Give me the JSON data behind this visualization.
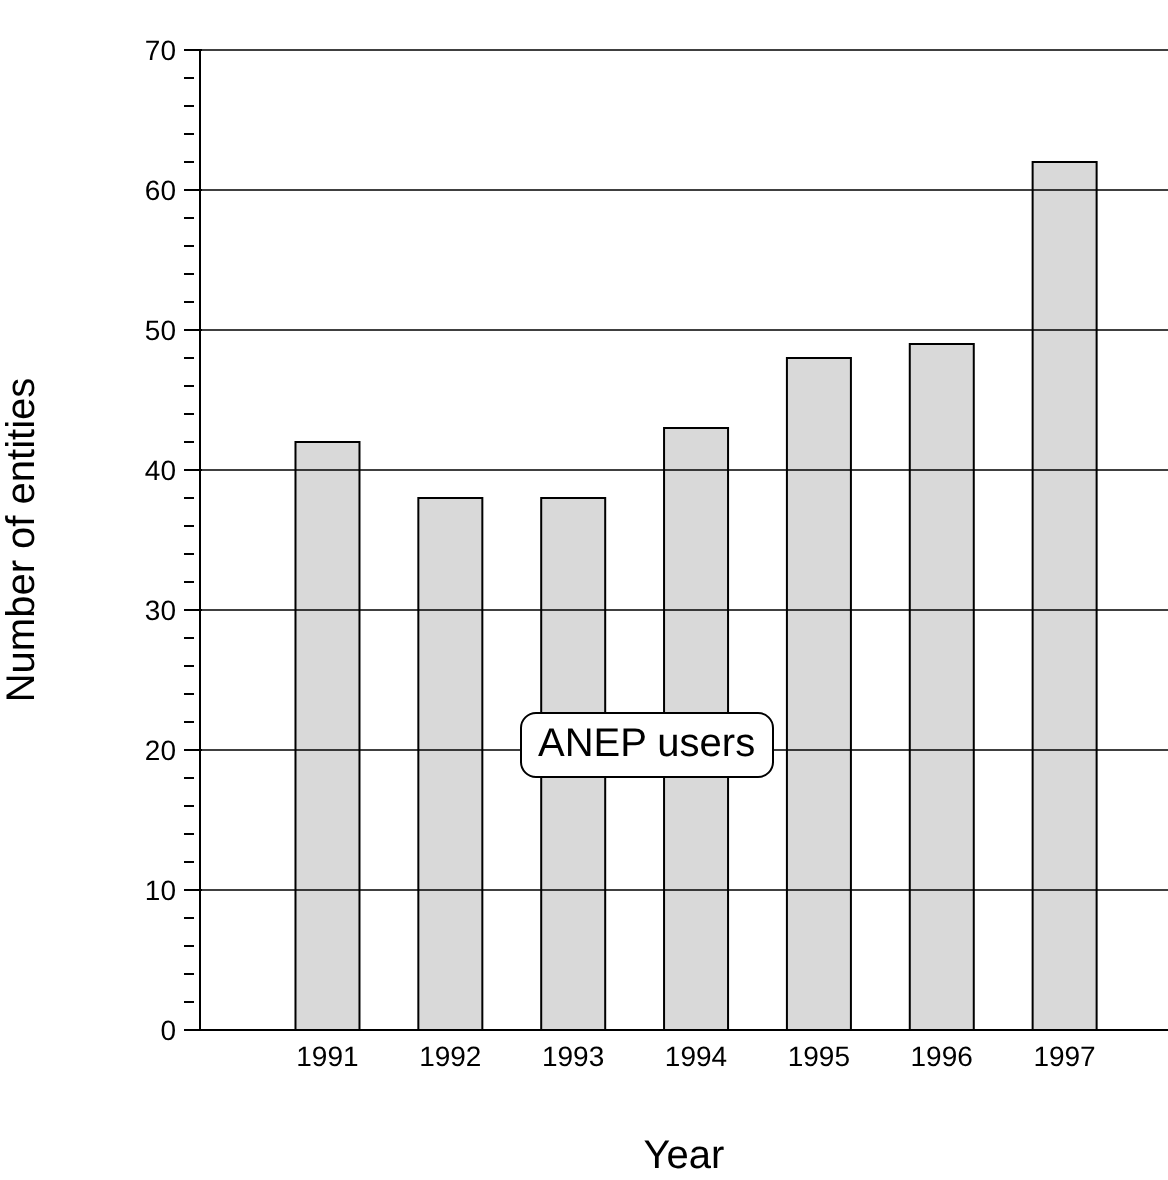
{
  "chart_data": {
    "type": "bar",
    "xlabel": "Year",
    "ylabel": "Number of entities",
    "categories": [
      "1991",
      "1992",
      "1993",
      "1994",
      "1995",
      "1996",
      "1997"
    ],
    "values": [
      42,
      38,
      38,
      43,
      48,
      49,
      62
    ],
    "color": "#d9d9d9",
    "ylim": [
      0,
      70
    ],
    "yticks": [
      0,
      {
        "value": 2,
        "label": null
      },
      {
        "value": 4,
        "label": null
      },
      {
        "value": 6,
        "label": null
      },
      {
        "value": 8,
        "label": null
      },
      10,
      {
        "value": 12,
        "label": null
      },
      {
        "value": 14,
        "label": null
      },
      {
        "value": 16,
        "label": null
      },
      {
        "value": 18,
        "label": null
      },
      20,
      {
        "value": 22,
        "label": null
      },
      {
        "value": 24,
        "label": null
      },
      {
        "value": 26,
        "label": null
      },
      {
        "value": 28,
        "label": null
      },
      30,
      {
        "value": 32,
        "label": null
      },
      {
        "value": 34,
        "label": null
      },
      {
        "value": 36,
        "label": null
      },
      {
        "value": 38,
        "label": null
      },
      40,
      {
        "value": 42,
        "label": null
      },
      {
        "value": 44,
        "label": null
      },
      {
        "value": 46,
        "label": null
      },
      {
        "value": 48,
        "label": null
      },
      50,
      {
        "value": 52,
        "label": null
      },
      {
        "value": 54,
        "label": null
      },
      {
        "value": 56,
        "label": null
      },
      {
        "value": 58,
        "label": null
      },
      60,
      {
        "value": 62,
        "label": null
      },
      {
        "value": 64,
        "label": null
      },
      {
        "value": 66,
        "label": null
      },
      {
        "value": 68,
        "label": null
      },
      70
    ],
    "grid": "y",
    "annotations": [
      "ANEP users"
    ]
  }
}
